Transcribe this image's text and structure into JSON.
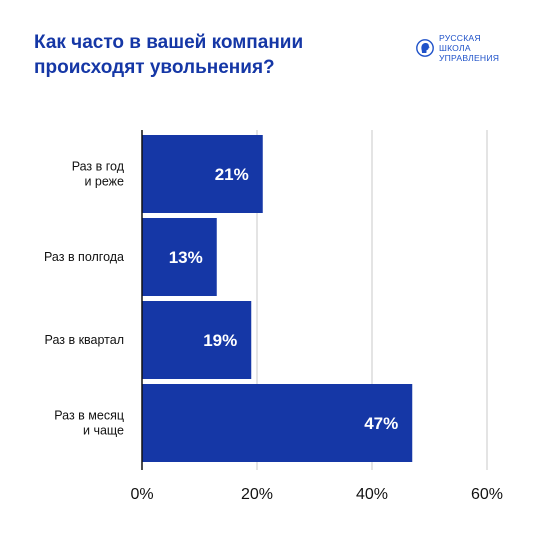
{
  "title_lines": [
    "Как часто в вашей компании",
    "происходят увольнения?"
  ],
  "logo": {
    "icon": "rsh-profile-logo-icon",
    "lines": [
      "РУССКАЯ",
      "ШКОЛА",
      "УПРАВЛЕНИЯ"
    ]
  },
  "colors": {
    "bar": "#1537a6",
    "title": "#1537a6",
    "grid": "#c9c9c9",
    "axis": "#111111"
  },
  "chart_data": {
    "type": "bar",
    "orientation": "horizontal",
    "title": "Как часто в вашей компании происходят увольнения?",
    "categories": [
      [
        "Раз в год",
        "и реже"
      ],
      [
        "Раз в полгода"
      ],
      [
        "Раз в квартал"
      ],
      [
        "Раз в месяц",
        "и чаще"
      ]
    ],
    "values": [
      21,
      13,
      19,
      47
    ],
    "value_labels": [
      "21%",
      "13%",
      "19%",
      "47%"
    ],
    "xlim": [
      0,
      60
    ],
    "xticks": [
      0,
      20,
      40,
      60
    ],
    "xtick_labels": [
      "0%",
      "20%",
      "40%",
      "60%"
    ],
    "grid": true,
    "xlabel": "",
    "ylabel": ""
  }
}
